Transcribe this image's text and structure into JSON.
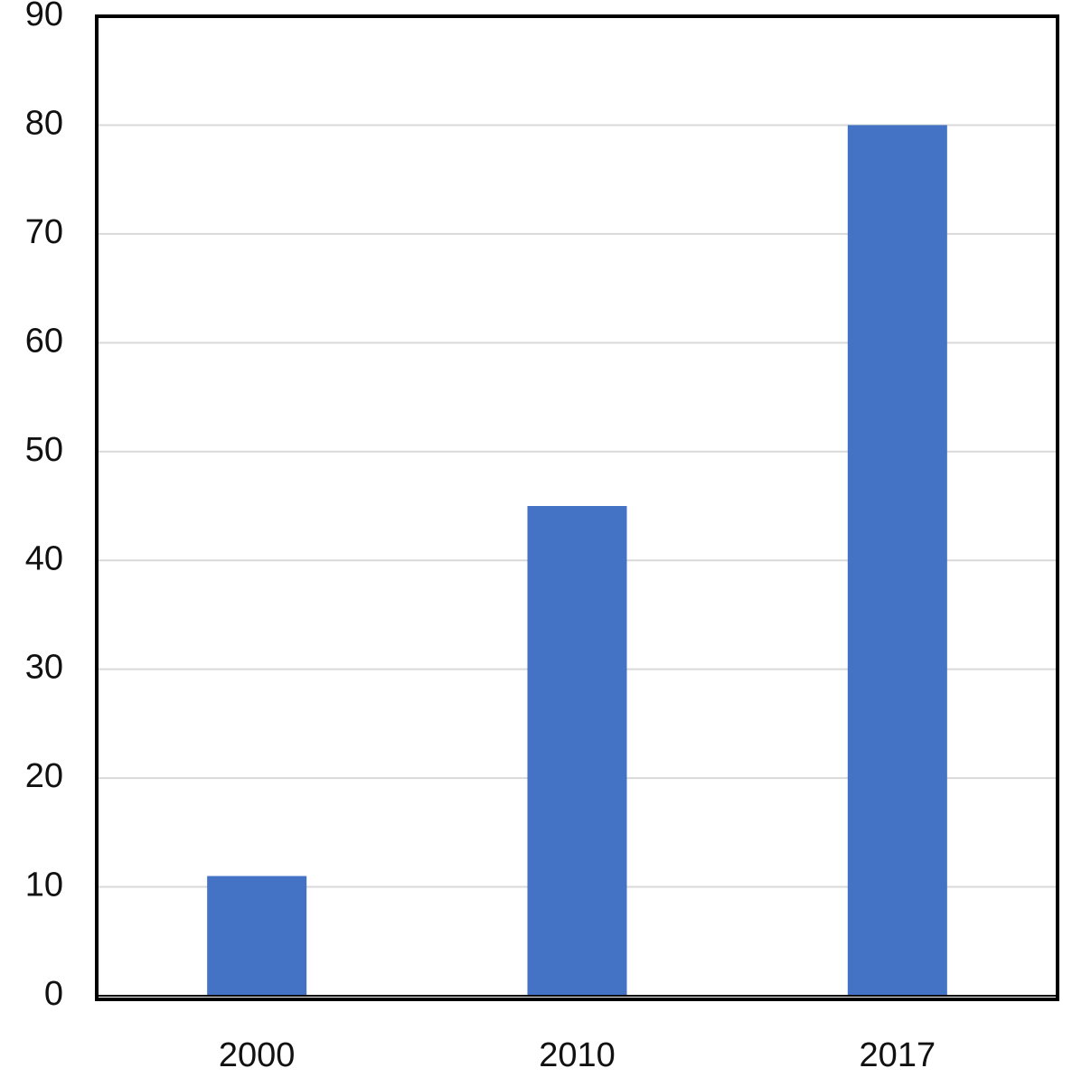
{
  "chart_data": {
    "type": "bar",
    "categories": [
      "2000",
      "2010",
      "2017"
    ],
    "values": [
      11,
      45,
      80
    ],
    "title": "",
    "xlabel": "",
    "ylabel": "",
    "ylim": [
      0,
      90
    ],
    "yticks": [
      0,
      10,
      20,
      30,
      40,
      50,
      60,
      70,
      80,
      90
    ],
    "grid": true,
    "legend": "none",
    "bar_color": "#4472C4",
    "grid_color": "#D9D9D9",
    "frame_color": "#000000"
  }
}
